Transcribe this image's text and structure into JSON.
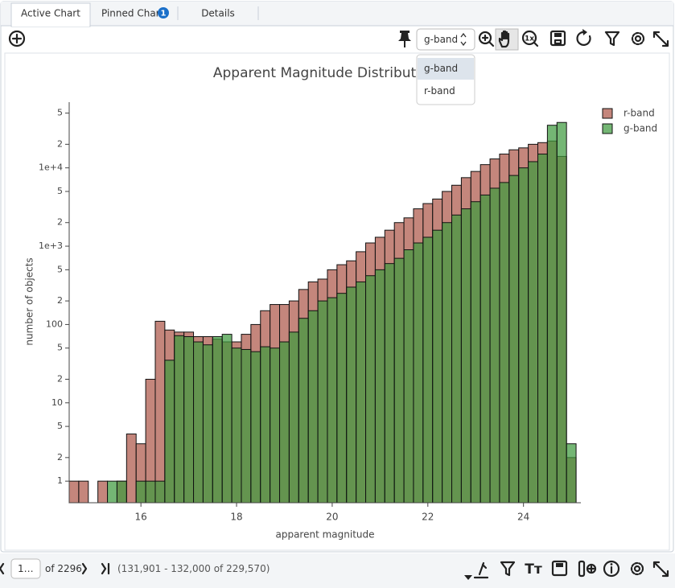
{
  "tabs": [
    "Active Chart",
    "Pinned Chart",
    "Details"
  ],
  "pinned_badge": "1",
  "toolbar": {
    "band_select": "g-band",
    "band_menu": [
      "g-band",
      "r-band"
    ]
  },
  "chart_data": {
    "type": "histogram",
    "title": "Apparent Magnitude Distribution",
    "x_label": "apparent magnitude",
    "y_label": "number of objects",
    "bins": [
      14.5,
      14.7,
      14.9,
      15.1,
      15.3,
      15.5,
      15.7,
      15.9,
      16.1,
      16.3,
      16.5,
      16.7,
      16.9,
      17.1,
      17.3,
      17.5,
      17.7,
      17.9,
      18.1,
      18.3,
      18.5,
      18.7,
      18.9,
      19.1,
      19.3,
      19.5,
      19.7,
      19.9,
      20.1,
      20.3,
      20.5,
      20.7,
      20.9,
      21.1,
      21.3,
      21.5,
      21.7,
      21.9,
      22.1,
      22.3,
      22.5,
      22.7,
      22.9,
      23.1,
      23.3,
      23.5,
      23.7,
      23.9,
      24.1,
      24.3,
      24.5,
      24.7,
      24.9,
      25.1
    ],
    "series": [
      {
        "name": "r-band",
        "color": "#b5685b",
        "values": [
          1,
          1,
          0,
          1,
          0,
          1,
          4,
          3,
          20,
          110,
          85,
          80,
          80,
          70,
          70,
          65,
          60,
          60,
          75,
          100,
          150,
          180,
          180,
          200,
          280,
          350,
          380,
          500,
          580,
          650,
          850,
          1100,
          1300,
          1600,
          2000,
          2300,
          3000,
          3500,
          4000,
          5000,
          6000,
          7500,
          9000,
          11000,
          13000,
          15000,
          17000,
          18000,
          20000,
          21000,
          22000,
          14000,
          2
        ]
      },
      {
        "name": "g-band",
        "color": "#3f9a3f",
        "values": [
          0,
          0,
          0,
          0,
          1,
          1,
          0,
          1,
          1,
          1,
          35,
          72,
          70,
          60,
          55,
          70,
          75,
          50,
          48,
          45,
          52,
          50,
          60,
          80,
          120,
          150,
          200,
          220,
          250,
          300,
          350,
          420,
          500,
          600,
          700,
          900,
          1100,
          1300,
          1600,
          2000,
          2500,
          3000,
          3700,
          4500,
          5500,
          6500,
          8000,
          10000,
          12000,
          15000,
          35000,
          38000,
          3
        ]
      }
    ],
    "xlim": [
      14.5,
      25.2
    ],
    "xticks": [
      16,
      18,
      20,
      22,
      24
    ],
    "ylim": [
      0.53,
      69000
    ],
    "log_y": true,
    "yticks": [
      1,
      2,
      5,
      10,
      {
        "value": 20,
        "label": "2"
      },
      {
        "value": 50,
        "label": "5"
      },
      100,
      {
        "value": 200,
        "label": "2"
      },
      {
        "value": 500,
        "label": "5"
      },
      {
        "value": 1000,
        "label": "1e+3"
      },
      {
        "value": 2000,
        "label": "2"
      },
      {
        "value": 5000,
        "label": "5"
      },
      {
        "value": 10000,
        "label": "1e+4"
      },
      {
        "value": 20000,
        "label": "2"
      },
      {
        "value": 50000,
        "label": "5"
      }
    ],
    "legend": "top-right",
    "grid": false
  },
  "footer": {
    "page_input": "1…",
    "page_count": "of 2296",
    "row_range": "(131,901 - 132,000 of 229,570)"
  }
}
